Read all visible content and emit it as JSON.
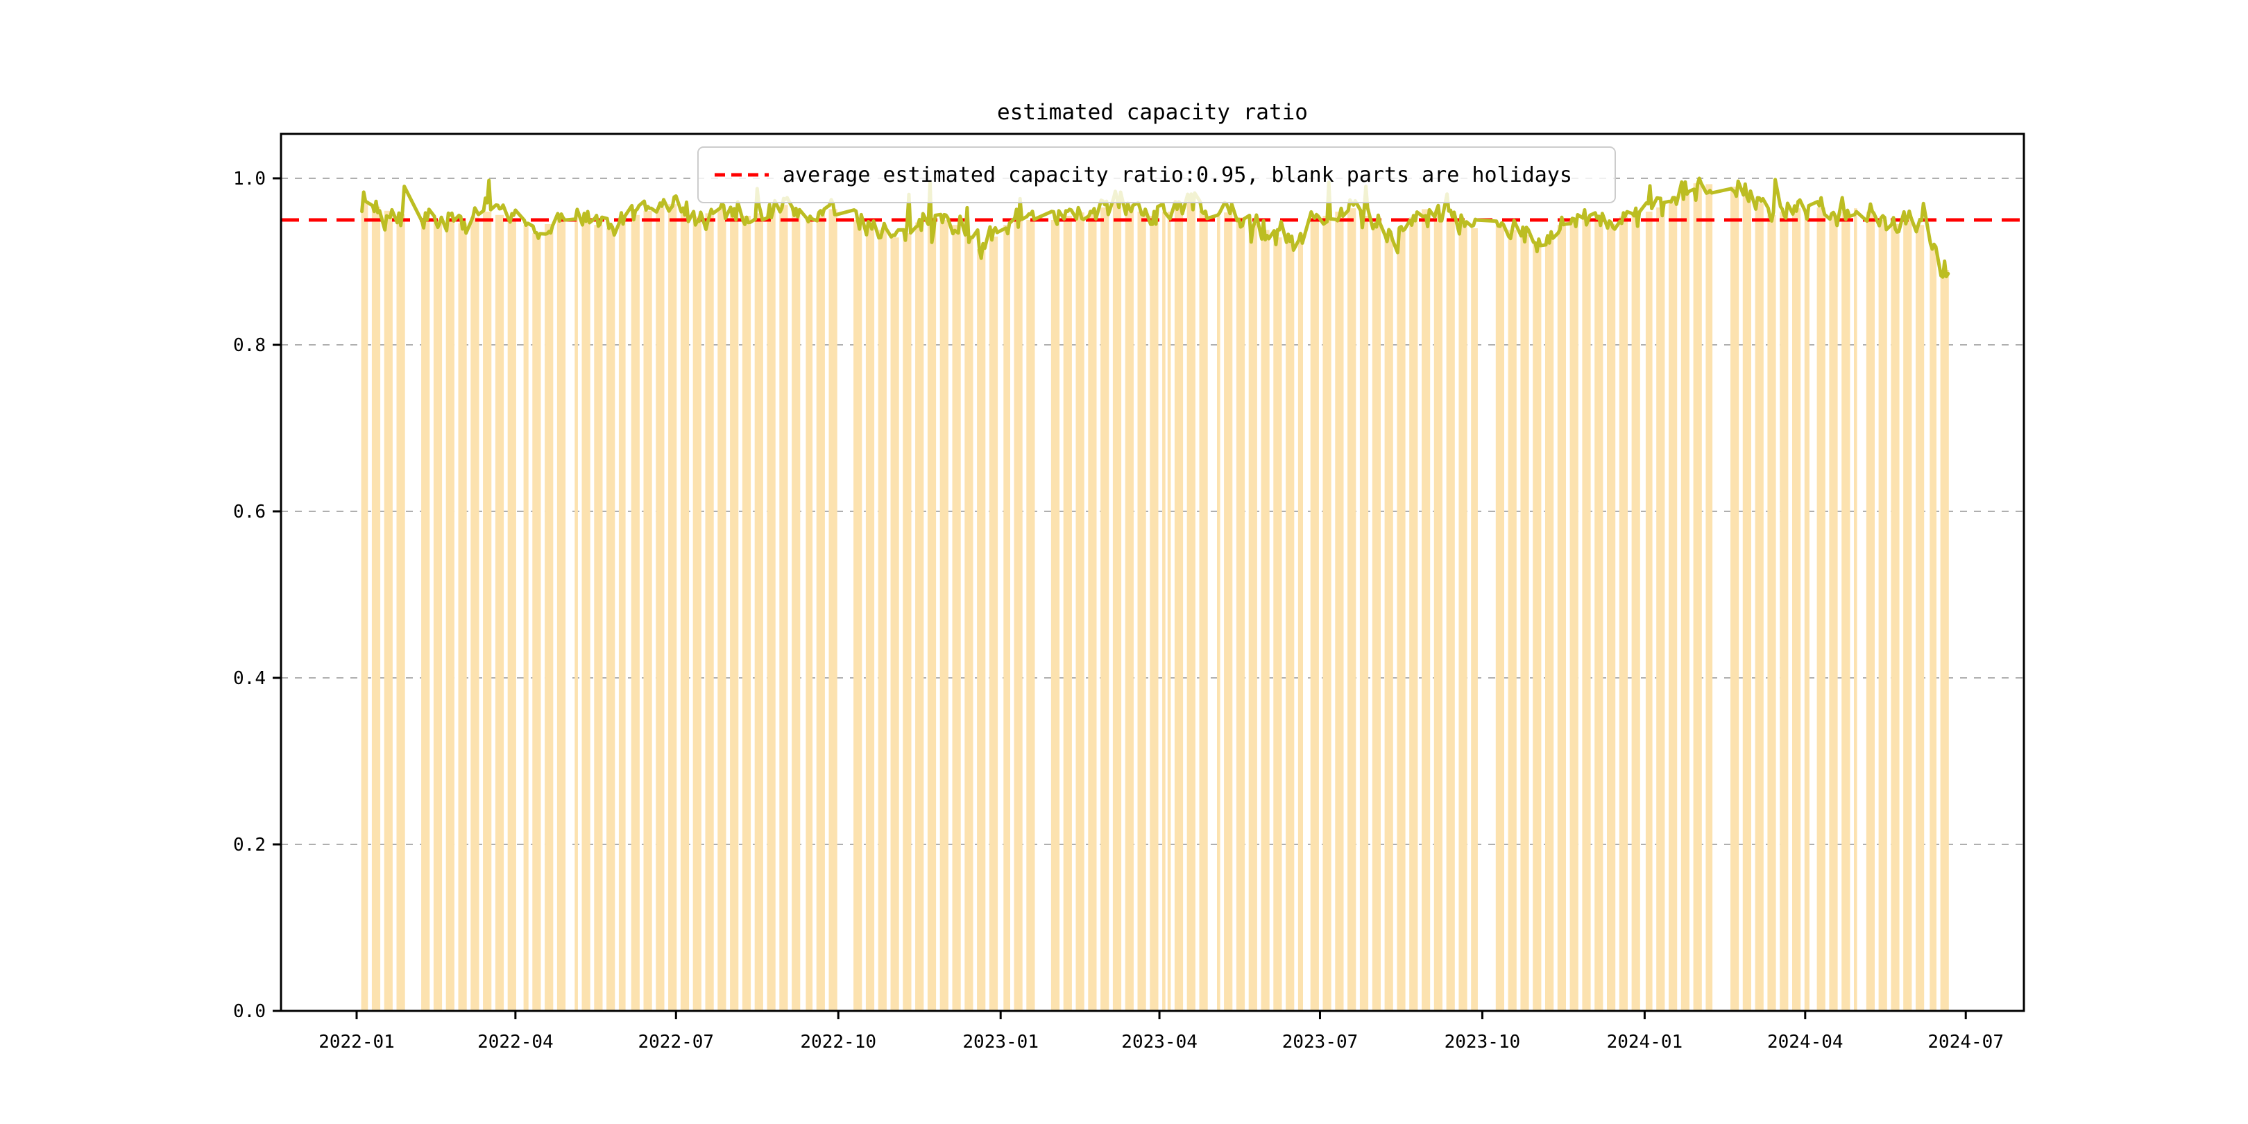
{
  "title": "estimated capacity ratio",
  "legend": {
    "label": "average estimated capacity ratio:0.95, blank parts are holidays",
    "marker_icon": "red-dashed-line-icon"
  },
  "colors": {
    "background": "#FFFFFF",
    "bar": "#FCE2AF",
    "line": "#BCBD22",
    "average_line": "#FF0000",
    "grid": "#AFAFAF",
    "spine": "#000000",
    "legend_border": "#CCCCCC",
    "legend_background": "rgba(255,255,255,0.8)"
  },
  "chart_data": {
    "type": "bar+line",
    "title": "estimated capacity ratio",
    "average": 0.95,
    "average_line_style": "red dashed horizontal line",
    "ylim": [
      0.0,
      1.053
    ],
    "y_tick_labels": [
      "0.0",
      "0.2",
      "0.4",
      "0.6",
      "0.8",
      "1.0"
    ],
    "x_tick_labels": [
      "2022-01",
      "2022-04",
      "2022-07",
      "2022-10",
      "2023-01",
      "2023-04",
      "2023-07",
      "2023-10",
      "2024-01",
      "2024-04",
      "2024-07"
    ],
    "grid": "horizontal dashed gridlines",
    "legend_position": "upper center",
    "date_start": "2022-01-04",
    "date_end": "2024-06-21",
    "series_description": "daily estimated capacity ratio on workdays (olive line) with weekly-mean bars; blank parts are weekends and holidays",
    "daily_noise_amplitude": 0.012,
    "holidays": [
      [
        "2022-01-03",
        "2022-01-03"
      ],
      [
        "2022-01-31",
        "2022-02-04"
      ],
      [
        "2022-04-04",
        "2022-04-05"
      ],
      [
        "2022-05-02",
        "2022-05-04"
      ],
      [
        "2022-06-03",
        "2022-06-03"
      ],
      [
        "2022-09-12",
        "2022-09-12"
      ],
      [
        "2022-10-03",
        "2022-10-07"
      ],
      [
        "2023-01-02",
        "2023-01-02"
      ],
      [
        "2023-01-23",
        "2023-01-27"
      ],
      [
        "2023-04-05",
        "2023-04-05"
      ],
      [
        "2023-05-01",
        "2023-05-03"
      ],
      [
        "2023-06-22",
        "2023-06-23"
      ],
      [
        "2023-09-29",
        "2023-10-06"
      ],
      [
        "2024-01-01",
        "2024-01-01"
      ],
      [
        "2024-02-09",
        "2024-02-16"
      ],
      [
        "2024-04-04",
        "2024-04-05"
      ],
      [
        "2024-05-01",
        "2024-05-03"
      ],
      [
        "2024-06-10",
        "2024-06-10"
      ]
    ],
    "weekly_values": [
      [
        "2022-01-03",
        0.972
      ],
      [
        "2022-01-10",
        0.966
      ],
      [
        "2022-01-17",
        0.961
      ],
      [
        "2022-01-24",
        0.957
      ],
      [
        "2022-02-07",
        0.952
      ],
      [
        "2022-02-14",
        0.95
      ],
      [
        "2022-02-21",
        0.948
      ],
      [
        "2022-02-28",
        0.946
      ],
      [
        "2022-03-07",
        0.953
      ],
      [
        "2022-03-14",
        0.96
      ],
      [
        "2022-03-21",
        0.956
      ],
      [
        "2022-03-28",
        0.95
      ],
      [
        "2022-04-04",
        0.944
      ],
      [
        "2022-04-11",
        0.934
      ],
      [
        "2022-04-18",
        0.945
      ],
      [
        "2022-04-25",
        0.952
      ],
      [
        "2022-05-02",
        0.956
      ],
      [
        "2022-05-09",
        0.95
      ],
      [
        "2022-05-16",
        0.944
      ],
      [
        "2022-05-23",
        0.94
      ],
      [
        "2022-05-30",
        0.95
      ],
      [
        "2022-06-06",
        0.956
      ],
      [
        "2022-06-13",
        0.961
      ],
      [
        "2022-06-20",
        0.965
      ],
      [
        "2022-06-27",
        0.969
      ],
      [
        "2022-07-04",
        0.96
      ],
      [
        "2022-07-11",
        0.954
      ],
      [
        "2022-07-18",
        0.958
      ],
      [
        "2022-07-25",
        0.963
      ],
      [
        "2022-08-01",
        0.96
      ],
      [
        "2022-08-08",
        0.955
      ],
      [
        "2022-08-15",
        0.958
      ],
      [
        "2022-08-22",
        0.963
      ],
      [
        "2022-08-29",
        0.968
      ],
      [
        "2022-09-05",
        0.96
      ],
      [
        "2022-09-12",
        0.954
      ],
      [
        "2022-09-19",
        0.958
      ],
      [
        "2022-09-26",
        0.963
      ],
      [
        "2022-10-10",
        0.95
      ],
      [
        "2022-10-17",
        0.944
      ],
      [
        "2022-10-24",
        0.938
      ],
      [
        "2022-10-31",
        0.929
      ],
      [
        "2022-11-07",
        0.934
      ],
      [
        "2022-11-14",
        0.947
      ],
      [
        "2022-11-21",
        0.953
      ],
      [
        "2022-11-28",
        0.95
      ],
      [
        "2022-12-05",
        0.944
      ],
      [
        "2022-12-12",
        0.93
      ],
      [
        "2022-12-19",
        0.915
      ],
      [
        "2022-12-26",
        0.93
      ],
      [
        "2023-01-02",
        0.944
      ],
      [
        "2023-01-09",
        0.953
      ],
      [
        "2023-01-16",
        0.95
      ],
      [
        "2023-01-30",
        0.95
      ],
      [
        "2023-02-06",
        0.955
      ],
      [
        "2023-02-13",
        0.959
      ],
      [
        "2023-02-20",
        0.961
      ],
      [
        "2023-02-27",
        0.965
      ],
      [
        "2023-03-06",
        0.973
      ],
      [
        "2023-03-13",
        0.968
      ],
      [
        "2023-03-20",
        0.96
      ],
      [
        "2023-03-27",
        0.955
      ],
      [
        "2023-04-03",
        0.96
      ],
      [
        "2023-04-10",
        0.965
      ],
      [
        "2023-04-17",
        0.973
      ],
      [
        "2023-04-24",
        0.961
      ],
      [
        "2023-05-01",
        0.955
      ],
      [
        "2023-05-08",
        0.959
      ],
      [
        "2023-05-15",
        0.953
      ],
      [
        "2023-05-22",
        0.945
      ],
      [
        "2023-05-29",
        0.938
      ],
      [
        "2023-06-05",
        0.929
      ],
      [
        "2023-06-12",
        0.924
      ],
      [
        "2023-06-19",
        0.934
      ],
      [
        "2023-06-26",
        0.948
      ],
      [
        "2023-07-03",
        0.955
      ],
      [
        "2023-07-10",
        0.96
      ],
      [
        "2023-07-17",
        0.964
      ],
      [
        "2023-07-24",
        0.955
      ],
      [
        "2023-07-31",
        0.945
      ],
      [
        "2023-08-07",
        0.934
      ],
      [
        "2023-08-14",
        0.94
      ],
      [
        "2023-08-21",
        0.953
      ],
      [
        "2023-08-28",
        0.963
      ],
      [
        "2023-09-04",
        0.958
      ],
      [
        "2023-09-11",
        0.95
      ],
      [
        "2023-09-18",
        0.944
      ],
      [
        "2023-09-25",
        0.94
      ],
      [
        "2023-10-09",
        0.944
      ],
      [
        "2023-10-16",
        0.938
      ],
      [
        "2023-10-23",
        0.932
      ],
      [
        "2023-10-30",
        0.924
      ],
      [
        "2023-11-06",
        0.93
      ],
      [
        "2023-11-13",
        0.944
      ],
      [
        "2023-11-20",
        0.95
      ],
      [
        "2023-11-27",
        0.955
      ],
      [
        "2023-12-04",
        0.95
      ],
      [
        "2023-12-11",
        0.945
      ],
      [
        "2023-12-18",
        0.954
      ],
      [
        "2023-12-25",
        0.959
      ],
      [
        "2024-01-01",
        0.96
      ],
      [
        "2024-01-08",
        0.965
      ],
      [
        "2024-01-15",
        0.971
      ],
      [
        "2024-01-22",
        0.984
      ],
      [
        "2024-01-29",
        0.994
      ],
      [
        "2024-02-05",
        0.993
      ],
      [
        "2024-02-19",
        0.99
      ],
      [
        "2024-02-26",
        0.984
      ],
      [
        "2024-03-04",
        0.97
      ],
      [
        "2024-03-11",
        0.956
      ],
      [
        "2024-03-18",
        0.96
      ],
      [
        "2024-03-25",
        0.964
      ],
      [
        "2024-04-01",
        0.96
      ],
      [
        "2024-04-08",
        0.965
      ],
      [
        "2024-04-15",
        0.955
      ],
      [
        "2024-04-22",
        0.96
      ],
      [
        "2024-04-29",
        0.964
      ],
      [
        "2024-05-06",
        0.96
      ],
      [
        "2024-05-13",
        0.95
      ],
      [
        "2024-05-20",
        0.945
      ],
      [
        "2024-05-27",
        0.954
      ],
      [
        "2024-06-03",
        0.944
      ],
      [
        "2024-06-10",
        0.916
      ],
      [
        "2024-06-17",
        0.89
      ]
    ]
  }
}
